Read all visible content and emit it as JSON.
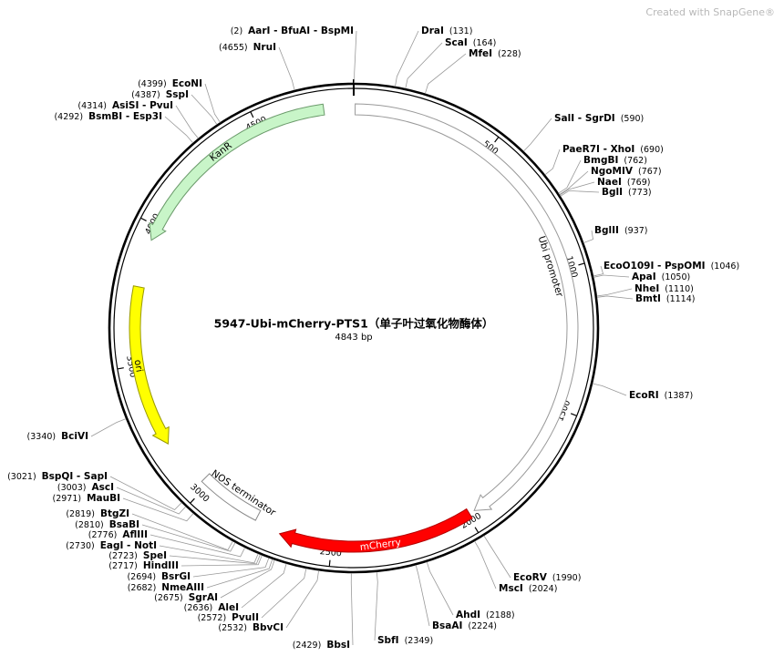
{
  "watermark": "Created with SnapGene®",
  "map": {
    "title": "5947-Ubi-mCherry-PTS1（单子叶过氧化物酶体）",
    "size": "4843 bp",
    "ticks": [
      500,
      1000,
      1500,
      2000,
      2500,
      3000,
      3500,
      4000,
      4500
    ],
    "features": [
      {
        "name": "Ubi promoter"
      },
      {
        "name": "mCherry"
      },
      {
        "name": "NOS terminator"
      },
      {
        "name": "ori"
      },
      {
        "name": "KanR"
      }
    ],
    "sites": [
      {
        "name": "AarI - BfuAI - BspMI",
        "pos": "(2)"
      },
      {
        "name": "DraI",
        "pos": "(131)"
      },
      {
        "name": "ScaI",
        "pos": "(164)"
      },
      {
        "name": "MfeI",
        "pos": "(228)"
      },
      {
        "name": "SalI - SgrDI",
        "pos": "(590)"
      },
      {
        "name": "PaeR7I - XhoI",
        "pos": "(690)"
      },
      {
        "name": "BmgBI",
        "pos": "(762)"
      },
      {
        "name": "NgoMIV",
        "pos": "(767)"
      },
      {
        "name": "NaeI",
        "pos": "(769)"
      },
      {
        "name": "BglI",
        "pos": "(773)"
      },
      {
        "name": "BglII",
        "pos": "(937)"
      },
      {
        "name": "EcoO109I - PspOMI",
        "pos": "(1046)"
      },
      {
        "name": "ApaI",
        "pos": "(1050)"
      },
      {
        "name": "NheI",
        "pos": "(1110)"
      },
      {
        "name": "BmtI",
        "pos": "(1114)"
      },
      {
        "name": "EcoRI",
        "pos": "(1387)"
      },
      {
        "name": "EcoRV",
        "pos": "(1990)"
      },
      {
        "name": "MscI",
        "pos": "(2024)"
      },
      {
        "name": "AhdI",
        "pos": "(2188)"
      },
      {
        "name": "BsaAI",
        "pos": "(2224)"
      },
      {
        "name": "SbfI",
        "pos": "(2349)"
      },
      {
        "name": "BbsI",
        "pos": "(2429)"
      },
      {
        "name": "BbvCI",
        "pos": "(2532)"
      },
      {
        "name": "PvuII",
        "pos": "(2572)"
      },
      {
        "name": "AleI",
        "pos": "(2636)"
      },
      {
        "name": "SgrAI",
        "pos": "(2675)"
      },
      {
        "name": "NmeAIII",
        "pos": "(2682)"
      },
      {
        "name": "BsrGI",
        "pos": "(2694)"
      },
      {
        "name": "HindIII",
        "pos": "(2717)"
      },
      {
        "name": "SpeI",
        "pos": "(2723)"
      },
      {
        "name": "EagI - NotI",
        "pos": "(2730)"
      },
      {
        "name": "AflIII",
        "pos": "(2776)"
      },
      {
        "name": "BsaBI",
        "pos": "(2810)"
      },
      {
        "name": "BtgZI",
        "pos": "(2819)"
      },
      {
        "name": "MauBI",
        "pos": "(2971)"
      },
      {
        "name": "AscI",
        "pos": "(3003)"
      },
      {
        "name": "BspQI - SapI",
        "pos": "(3021)"
      },
      {
        "name": "BciVI",
        "pos": "(3340)"
      },
      {
        "name": "BsmBI - Esp3I",
        "pos": "(4292)"
      },
      {
        "name": "AsiSI - PvuI",
        "pos": "(4314)"
      },
      {
        "name": "SspI",
        "pos": "(4387)"
      },
      {
        "name": "EcoNI",
        "pos": "(4399)"
      },
      {
        "name": "NruI",
        "pos": "(4655)"
      }
    ]
  }
}
